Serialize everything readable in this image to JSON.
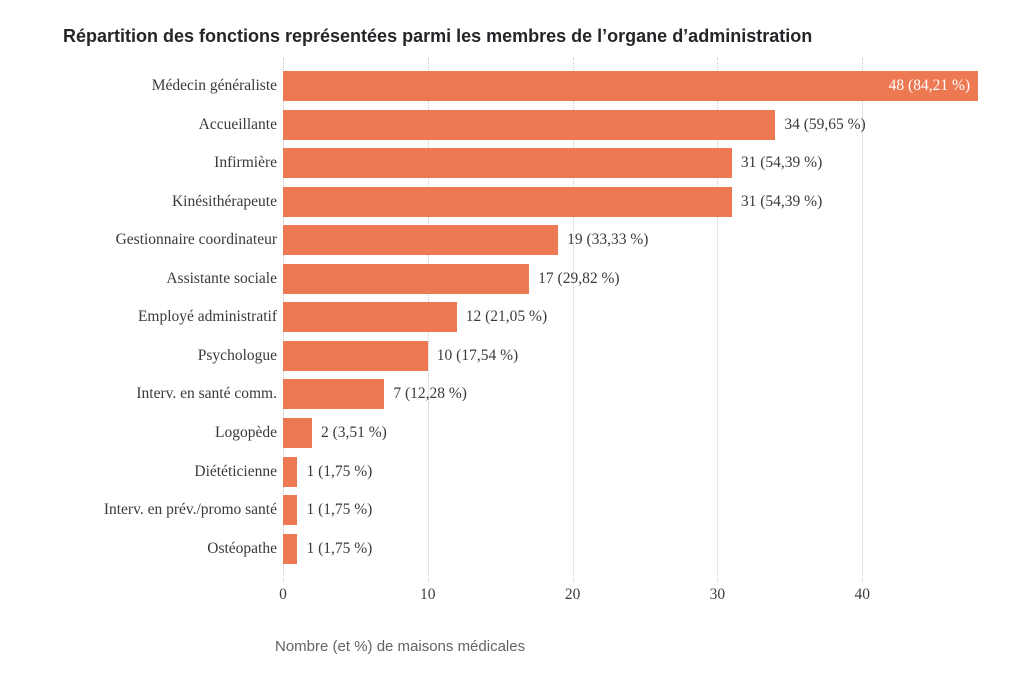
{
  "chart_data": {
    "type": "bar",
    "orientation": "horizontal",
    "title": "Répartition des fonctions représentées parmi les membres de l’organe d’administration",
    "xlabel": "Nombre (et %) de maisons médicales",
    "ylabel": "",
    "xlim": [
      0,
      48
    ],
    "xticks": [
      0,
      10,
      20,
      30,
      40
    ],
    "grid": "vertical-dotted",
    "legend": "none",
    "bar_color": "#ED7953",
    "inside_label_color": "#FFFFFF",
    "outside_label_color": "#3A3A3A",
    "categories": [
      "Médecin généraliste",
      "Accueillante",
      "Infirmière",
      "Kinésithérapeute",
      "Gestionnaire coordinateur",
      "Assistante sociale",
      "Employé administratif",
      "Psychologue",
      "Interv. en santé comm.",
      "Logopède",
      "Diététicienne",
      "Interv. en prév./promo santé",
      "Ostéopathe"
    ],
    "values": [
      48,
      34,
      31,
      31,
      19,
      17,
      12,
      10,
      7,
      2,
      1,
      1,
      1
    ],
    "bar_labels": [
      "48 (84,21 %)",
      "34 (59,65 %)",
      "31 (54,39 %)",
      "31 (54,39 %)",
      "19 (33,33 %)",
      "17 (29,82 %)",
      "12 (21,05 %)",
      "10 (17,54 %)",
      "7 (12,28 %)",
      "2 (3,51 %)",
      "1 (1,75 %)",
      "1 (1,75 %)",
      "1 (1,75 %)"
    ],
    "bar_label_positions": [
      "inside",
      "outside",
      "outside",
      "outside",
      "outside",
      "outside",
      "outside",
      "outside",
      "outside",
      "outside",
      "outside",
      "outside",
      "outside"
    ]
  }
}
